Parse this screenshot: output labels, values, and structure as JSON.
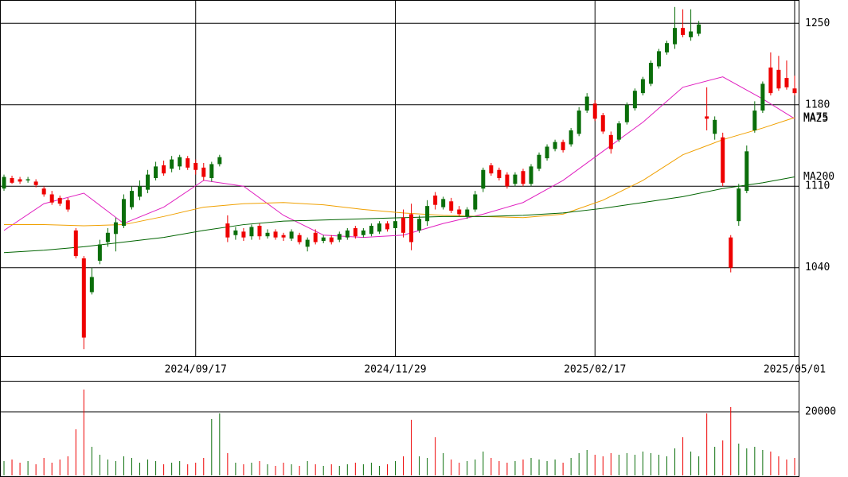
{
  "chart_data": {
    "type": "candlestick",
    "categories": [
      null,
      null,
      null,
      null,
      null,
      null,
      null,
      null,
      null,
      null,
      null,
      null,
      null,
      null,
      null,
      null,
      null,
      null,
      null,
      null,
      null,
      null,
      null,
      null,
      "2024/09/17",
      null,
      null,
      null,
      null,
      null,
      null,
      null,
      null,
      null,
      null,
      null,
      null,
      null,
      null,
      null,
      null,
      null,
      null,
      null,
      null,
      null,
      null,
      null,
      null,
      "2024/11/29",
      null,
      null,
      null,
      null,
      null,
      null,
      null,
      null,
      null,
      null,
      null,
      null,
      null,
      null,
      null,
      null,
      null,
      null,
      null,
      null,
      null,
      null,
      null,
      null,
      "2025/02/17",
      null,
      null,
      null,
      null,
      null,
      null,
      null,
      null,
      null,
      null,
      null,
      null,
      null,
      null,
      null,
      null,
      null,
      null,
      null,
      null,
      null,
      null,
      null,
      null,
      "2025/05/01"
    ],
    "open": [
      1108,
      1117,
      1116,
      1115,
      1114,
      1108,
      1103,
      1100,
      1098,
      1072,
      1048,
      1019,
      1046,
      1062,
      1069,
      1076,
      1092,
      1101,
      1107,
      1117,
      1128,
      1125,
      1127,
      1134,
      1130,
      1126,
      1117,
      1129,
      1078,
      1068,
      1071,
      1067,
      1076,
      1067,
      1071,
      1068,
      1065,
      1068,
      1058,
      1070,
      1063,
      1066,
      1064,
      1066,
      1074,
      1068,
      1069,
      1071,
      1078,
      1074,
      1083,
      1086,
      1072,
      1080,
      1102,
      1092,
      1097,
      1090,
      1084,
      1090,
      1108,
      1128,
      1124,
      1120,
      1112,
      1123,
      1112,
      1125,
      1134,
      1142,
      1148,
      1146,
      1155,
      1175,
      1181,
      1171,
      1154,
      1150,
      1165,
      1177,
      1190,
      1198,
      1213,
      1225,
      1232,
      1246,
      1238,
      1241,
      1170,
      1155,
      1152,
      1066,
      1080,
      1106,
      1158,
      1175,
      1212,
      1210,
      1203,
      1194
    ],
    "high": [
      1120,
      1119,
      1118,
      1118,
      1116,
      1110,
      1106,
      1102,
      1100,
      1074,
      1050,
      1040,
      1064,
      1074,
      1083,
      1103,
      1110,
      1115,
      1124,
      1131,
      1132,
      1136,
      1137,
      1136,
      1133,
      1130,
      1131,
      1137,
      1085,
      1075,
      1074,
      1077,
      1078,
      1073,
      1073,
      1070,
      1073,
      1070,
      1066,
      1073,
      1068,
      1068,
      1071,
      1074,
      1076,
      1074,
      1078,
      1080,
      1080,
      1082,
      1090,
      1095,
      1085,
      1098,
      1105,
      1101,
      1100,
      1093,
      1092,
      1106,
      1126,
      1130,
      1126,
      1122,
      1122,
      1125,
      1129,
      1139,
      1146,
      1150,
      1150,
      1160,
      1178,
      1190,
      1184,
      1173,
      1157,
      1166,
      1182,
      1194,
      1204,
      1218,
      1228,
      1235,
      1264,
      1262,
      1262,
      1252,
      1195,
      1170,
      1156,
      1068,
      1112,
      1145,
      1183,
      1200,
      1225,
      1222,
      1218,
      1205
    ],
    "low": [
      1106,
      1112,
      1112,
      1113,
      1109,
      1101,
      1094,
      1093,
      1088,
      1048,
      970,
      1017,
      1043,
      1058,
      1054,
      1074,
      1090,
      1098,
      1104,
      1115,
      1119,
      1122,
      1124,
      1124,
      1120,
      1115,
      1114,
      1127,
      1062,
      1064,
      1063,
      1064,
      1064,
      1065,
      1064,
      1063,
      1063,
      1060,
      1054,
      1060,
      1061,
      1060,
      1062,
      1064,
      1065,
      1066,
      1067,
      1069,
      1071,
      1072,
      1066,
      1055,
      1070,
      1076,
      1090,
      1090,
      1087,
      1084,
      1082,
      1088,
      1105,
      1119,
      1115,
      1108,
      1110,
      1110,
      1110,
      1123,
      1132,
      1140,
      1139,
      1144,
      1153,
      1173,
      1166,
      1155,
      1138,
      1148,
      1163,
      1175,
      1188,
      1196,
      1211,
      1223,
      1228,
      1238,
      1235,
      1239,
      1158,
      1150,
      1110,
      1036,
      1076,
      1104,
      1156,
      1173,
      1188,
      1192,
      1193,
      1188
    ],
    "close": [
      1118,
      1113,
      1114,
      1116,
      1111,
      1103,
      1096,
      1095,
      1090,
      1050,
      980,
      1032,
      1060,
      1070,
      1079,
      1099,
      1106,
      1110,
      1120,
      1127,
      1121,
      1133,
      1135,
      1126,
      1124,
      1118,
      1129,
      1135,
      1066,
      1072,
      1066,
      1075,
      1067,
      1070,
      1066,
      1066,
      1071,
      1062,
      1064,
      1062,
      1066,
      1062,
      1069,
      1072,
      1067,
      1072,
      1076,
      1078,
      1073,
      1080,
      1070,
      1062,
      1082,
      1093,
      1094,
      1099,
      1089,
      1086,
      1090,
      1103,
      1124,
      1121,
      1117,
      1110,
      1120,
      1112,
      1127,
      1137,
      1144,
      1148,
      1141,
      1158,
      1175,
      1187,
      1168,
      1157,
      1142,
      1164,
      1180,
      1192,
      1202,
      1216,
      1226,
      1233,
      1246,
      1240,
      1243,
      1249,
      1168,
      1167,
      1113,
      1040,
      1108,
      1140,
      1175,
      1198,
      1190,
      1194,
      1195,
      1190
    ],
    "up_color": "#0a6e0a",
    "down_color": "#ee0000",
    "ylim": [
      964,
      1270
    ],
    "yticks": [
      1040,
      1110,
      1180,
      1250
    ],
    "grid": true,
    "moving_averages": [
      {
        "name": "MA25",
        "color": "#e020c0",
        "x": [
          0,
          5,
          10,
          15,
          20,
          25,
          30,
          35,
          40,
          45,
          50,
          55,
          60,
          65,
          70,
          75,
          80,
          85,
          90,
          95,
          99
        ],
        "values": [
          1072,
          1095,
          1104,
          1078,
          1092,
          1115,
          1110,
          1085,
          1068,
          1066,
          1068,
          1078,
          1086,
          1096,
          1115,
          1140,
          1165,
          1195,
          1204,
          1185,
          1168
        ]
      },
      {
        "name": "MA75",
        "color": "#f0a000",
        "x": [
          0,
          5,
          10,
          15,
          20,
          25,
          30,
          35,
          40,
          45,
          50,
          55,
          60,
          65,
          70,
          75,
          80,
          85,
          90,
          95,
          99
        ],
        "values": [
          1077,
          1077,
          1076,
          1077,
          1084,
          1092,
          1095,
          1096,
          1094,
          1090,
          1087,
          1085,
          1084,
          1083,
          1086,
          1098,
          1115,
          1137,
          1150,
          1160,
          1169
        ]
      },
      {
        "name": "MA200",
        "color": "#006400",
        "x": [
          0,
          5,
          10,
          15,
          20,
          25,
          30,
          35,
          40,
          45,
          50,
          55,
          60,
          65,
          70,
          75,
          80,
          85,
          90,
          95,
          99
        ],
        "values": [
          1053,
          1055,
          1058,
          1062,
          1066,
          1072,
          1077,
          1080,
          1081,
          1082,
          1083,
          1084,
          1084,
          1085,
          1087,
          1091,
          1096,
          1101,
          1108,
          1113,
          1118
        ]
      }
    ],
    "volume": {
      "type": "bar",
      "values": [
        4500,
        5000,
        4000,
        4500,
        3500,
        5500,
        4000,
        5000,
        6000,
        14500,
        27000,
        9000,
        6500,
        5000,
        4500,
        6000,
        5500,
        4000,
        5000,
        4500,
        3500,
        4000,
        4500,
        3500,
        4000,
        5500,
        17750,
        19500,
        7000,
        4000,
        3500,
        4000,
        4500,
        3500,
        3000,
        4000,
        3500,
        3000,
        4500,
        3500,
        3000,
        3500,
        3000,
        3500,
        4000,
        3500,
        4000,
        3000,
        3500,
        4500,
        6000,
        17500,
        6000,
        5500,
        12000,
        7000,
        5000,
        4000,
        4500,
        5000,
        7500,
        5500,
        4500,
        4000,
        4500,
        5000,
        5500,
        5000,
        4500,
        5000,
        4000,
        5500,
        7000,
        8000,
        6500,
        6000,
        7000,
        6500,
        7000,
        6500,
        7500,
        7000,
        6500,
        6000,
        8500,
        12000,
        7500,
        6000,
        19500,
        9000,
        11000,
        21500,
        10000,
        8500,
        9000,
        8000,
        7500,
        6000,
        5000,
        5500
      ],
      "ylim": [
        0,
        29500
      ],
      "yticks": [
        20000
      ]
    }
  }
}
